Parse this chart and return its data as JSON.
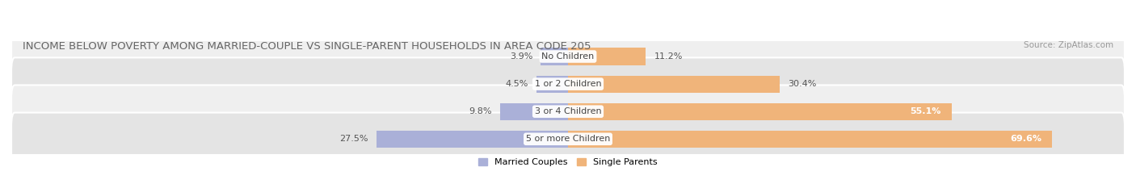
{
  "title": "INCOME BELOW POVERTY AMONG MARRIED-COUPLE VS SINGLE-PARENT HOUSEHOLDS IN AREA CODE 205",
  "source": "Source: ZipAtlas.com",
  "categories": [
    "No Children",
    "1 or 2 Children",
    "3 or 4 Children",
    "5 or more Children"
  ],
  "married_values": [
    3.9,
    4.5,
    9.8,
    27.5
  ],
  "single_values": [
    11.2,
    30.4,
    55.1,
    69.6
  ],
  "married_color": "#aab0d8",
  "single_color": "#f0b47a",
  "row_bg_colors": [
    "#efefef",
    "#e4e4e4"
  ],
  "xlim_left": -80.0,
  "xlim_right": 80.0,
  "title_fontsize": 9.5,
  "label_fontsize": 8.0,
  "bar_height": 0.62,
  "figsize": [
    14.06,
    2.33
  ],
  "dpi": 100
}
